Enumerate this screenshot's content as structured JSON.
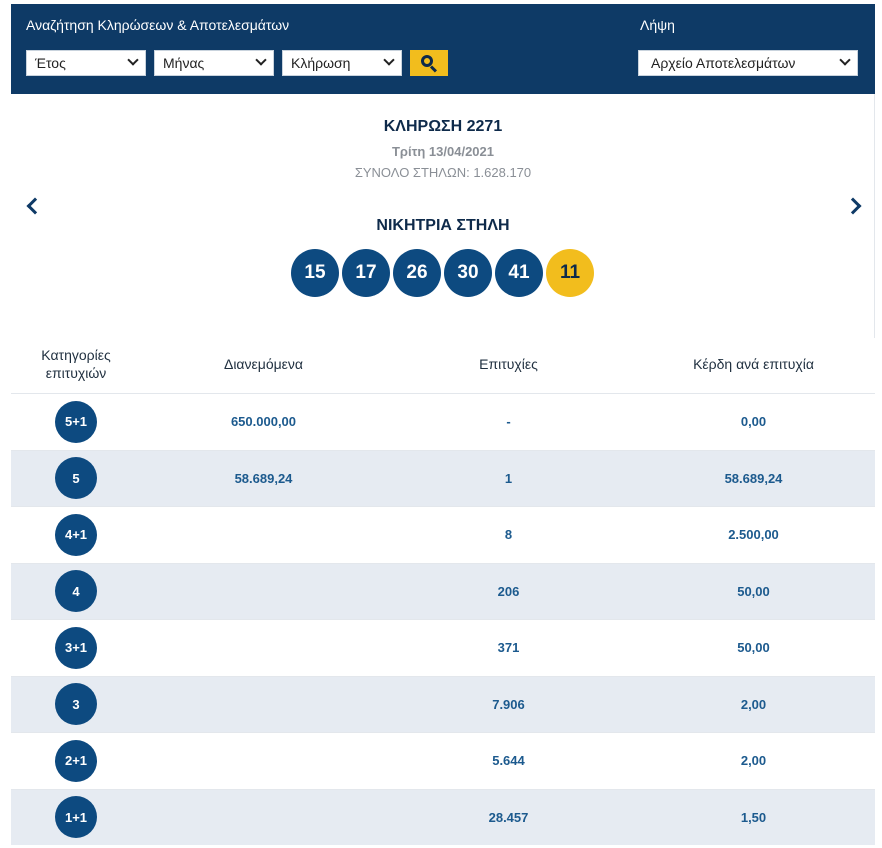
{
  "search": {
    "title": "Αναζήτηση Κληρώσεων & Αποτελεσμάτων",
    "year": "Έτος",
    "month": "Μήνας",
    "draw": "Κλήρωση"
  },
  "download": {
    "title": "Λήψη",
    "archive": "Αρχείο Αποτελεσμάτων"
  },
  "draw": {
    "title": "ΚΛΗΡΩΣΗ 2271",
    "date": "Τρίτη 13/04/2021",
    "columns": "ΣΥΝΟΛΟ ΣΤΗΛΩΝ: 1.628.170",
    "winning_title": "ΝΙΚΗΤΡΙΑ ΣΤΗΛΗ",
    "numbers": [
      "15",
      "17",
      "26",
      "30",
      "41"
    ],
    "joker": "11"
  },
  "table": {
    "headers": {
      "category": "Κατηγορίες επιτυχιών",
      "distributed": "Διανεμόμενα",
      "winners": "Επιτυχίες",
      "prize": "Κέρδη ανά επιτυχία"
    },
    "rows": [
      {
        "category": "5+1",
        "distributed": "650.000,00",
        "winners": "-",
        "prize": "0,00"
      },
      {
        "category": "5",
        "distributed": "58.689,24",
        "winners": "1",
        "prize": "58.689,24"
      },
      {
        "category": "4+1",
        "distributed": "",
        "winners": "8",
        "prize": "2.500,00"
      },
      {
        "category": "4",
        "distributed": "",
        "winners": "206",
        "prize": "50,00"
      },
      {
        "category": "3+1",
        "distributed": "",
        "winners": "371",
        "prize": "50,00"
      },
      {
        "category": "3",
        "distributed": "",
        "winners": "7.906",
        "prize": "2,00"
      },
      {
        "category": "2+1",
        "distributed": "",
        "winners": "5.644",
        "prize": "2,00"
      },
      {
        "category": "1+1",
        "distributed": "",
        "winners": "28.457",
        "prize": "1,50"
      }
    ]
  },
  "colors": {
    "header_bg": "#0e3a66",
    "ball": "#0d4a80",
    "joker": "#f2bd1d",
    "row_alt": "#e6ebf2"
  }
}
